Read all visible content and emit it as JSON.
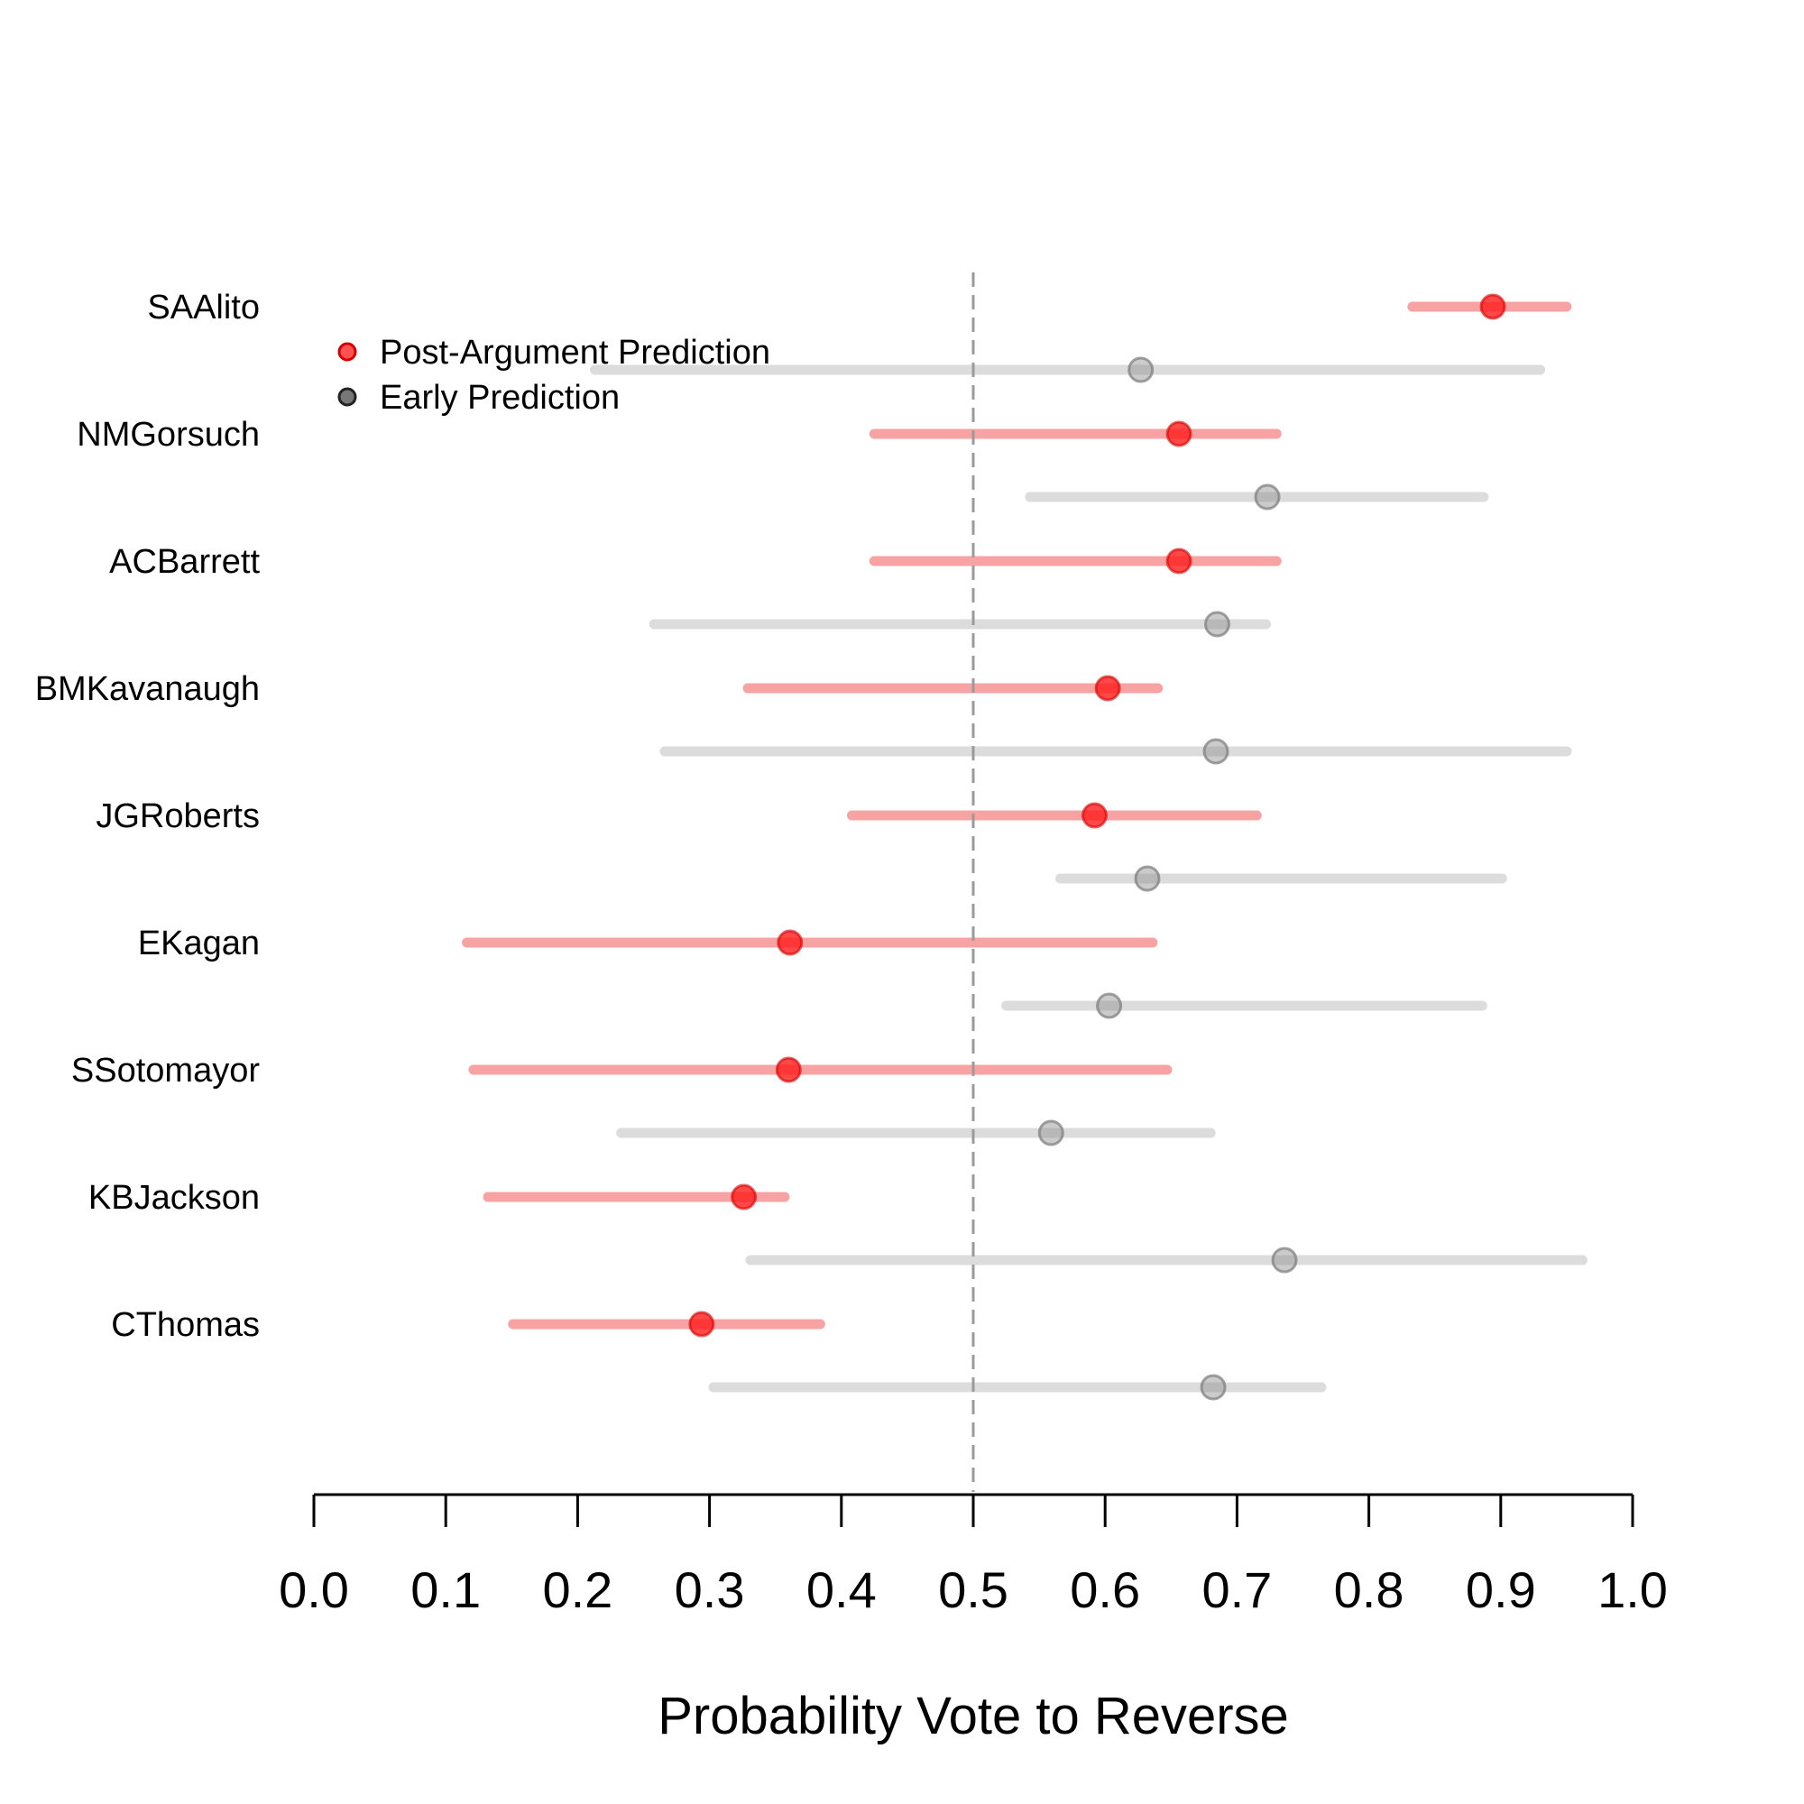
{
  "chart_data": {
    "type": "dot-interval",
    "xlabel": "Probability Vote to Reverse",
    "xlim": [
      0.0,
      1.0
    ],
    "x_ticks": [
      "0.0",
      "0.1",
      "0.2",
      "0.3",
      "0.4",
      "0.5",
      "0.6",
      "0.7",
      "0.8",
      "0.9",
      "1.0"
    ],
    "reference_line": 0.5,
    "legend_position": "top-left",
    "series": [
      {
        "name": "Post-Argument Prediction",
        "color": "#ff1a1a",
        "interval_color": "#f7a3a3"
      },
      {
        "name": "Early Prediction",
        "color": "#8c8c8c",
        "interval_color": "#dcdcdc"
      }
    ],
    "justices": [
      {
        "name": "SAAlito",
        "post": {
          "est": 0.894,
          "low": 0.833,
          "high": 0.95
        },
        "early": {
          "est": 0.627,
          "low": 0.213,
          "high": 0.93
        }
      },
      {
        "name": "NMGorsuch",
        "post": {
          "est": 0.656,
          "low": 0.425,
          "high": 0.73
        },
        "early": {
          "est": 0.723,
          "low": 0.543,
          "high": 0.887
        }
      },
      {
        "name": "ACBarrett",
        "post": {
          "est": 0.656,
          "low": 0.425,
          "high": 0.73
        },
        "early": {
          "est": 0.685,
          "low": 0.258,
          "high": 0.722
        }
      },
      {
        "name": "BMKavanaugh",
        "post": {
          "est": 0.602,
          "low": 0.329,
          "high": 0.64
        },
        "early": {
          "est": 0.684,
          "low": 0.266,
          "high": 0.95
        }
      },
      {
        "name": "JGRoberts",
        "post": {
          "est": 0.592,
          "low": 0.408,
          "high": 0.715
        },
        "early": {
          "est": 0.632,
          "low": 0.566,
          "high": 0.901
        }
      },
      {
        "name": "EKagan",
        "post": {
          "est": 0.361,
          "low": 0.116,
          "high": 0.636
        },
        "early": {
          "est": 0.603,
          "low": 0.525,
          "high": 0.886
        }
      },
      {
        "name": "SSotomayor",
        "post": {
          "est": 0.36,
          "low": 0.121,
          "high": 0.647
        },
        "early": {
          "est": 0.559,
          "low": 0.233,
          "high": 0.68
        }
      },
      {
        "name": "KBJackson",
        "post": {
          "est": 0.326,
          "low": 0.132,
          "high": 0.357
        },
        "early": {
          "est": 0.736,
          "low": 0.331,
          "high": 0.962
        }
      },
      {
        "name": "CThomas",
        "post": {
          "est": 0.294,
          "low": 0.151,
          "high": 0.384
        },
        "early": {
          "est": 0.682,
          "low": 0.303,
          "high": 0.764
        }
      }
    ]
  }
}
